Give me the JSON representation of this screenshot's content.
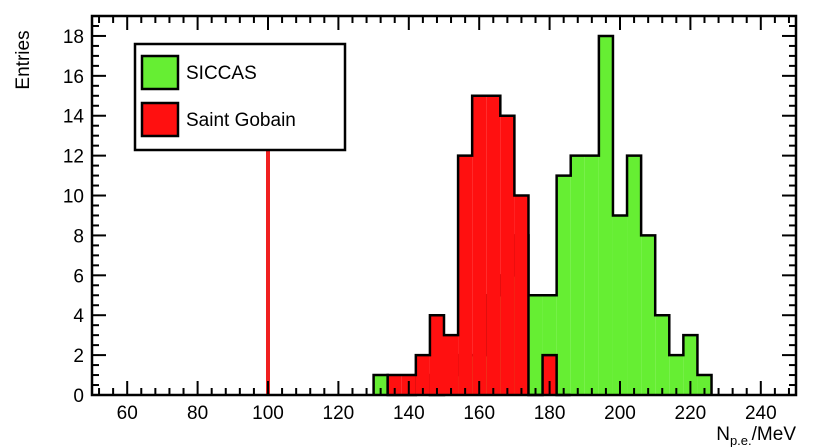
{
  "chart_data": {
    "type": "histogram",
    "title": "",
    "xlabel_main": "N",
    "xlabel_sub": "p.e.",
    "xlabel_tail": "/MeV",
    "ylabel": "Entries",
    "xlim": [
      50,
      250
    ],
    "ylim": [
      0,
      19
    ],
    "bin_width": 4,
    "x_ticks": [
      60,
      80,
      100,
      120,
      140,
      160,
      180,
      200,
      220,
      240
    ],
    "y_ticks": [
      0,
      2,
      4,
      6,
      8,
      10,
      12,
      14,
      16,
      18
    ],
    "legend_position": "top-left",
    "marker_line": {
      "x": 100,
      "color": "#f02020"
    },
    "series": [
      {
        "name": "SICCAS",
        "color": "#66ee33",
        "bins": [
          [
            130,
            134,
            1
          ],
          [
            134,
            138,
            0
          ],
          [
            138,
            142,
            0
          ],
          [
            142,
            146,
            1
          ],
          [
            146,
            150,
            0
          ],
          [
            150,
            154,
            1
          ],
          [
            154,
            158,
            2
          ],
          [
            158,
            162,
            2
          ],
          [
            162,
            166,
            5
          ],
          [
            166,
            170,
            6
          ],
          [
            170,
            174,
            8
          ],
          [
            174,
            178,
            5
          ],
          [
            178,
            182,
            5
          ],
          [
            182,
            186,
            11
          ],
          [
            186,
            190,
            12
          ],
          [
            190,
            194,
            12
          ],
          [
            194,
            198,
            18
          ],
          [
            198,
            202,
            9
          ],
          [
            202,
            206,
            12
          ],
          [
            206,
            210,
            8
          ],
          [
            210,
            214,
            4
          ],
          [
            214,
            218,
            2
          ],
          [
            218,
            222,
            3
          ],
          [
            222,
            226,
            1
          ]
        ]
      },
      {
        "name": "Saint Gobain",
        "color": "#ff1010",
        "bins": [
          [
            134,
            138,
            1
          ],
          [
            138,
            142,
            1
          ],
          [
            142,
            146,
            2
          ],
          [
            146,
            150,
            4
          ],
          [
            150,
            154,
            3
          ],
          [
            154,
            158,
            12
          ],
          [
            158,
            162,
            15
          ],
          [
            162,
            166,
            15
          ],
          [
            166,
            170,
            14
          ],
          [
            170,
            174,
            10
          ],
          [
            174,
            178,
            0
          ],
          [
            178,
            182,
            2
          ],
          [
            182,
            186,
            0
          ]
        ]
      }
    ]
  }
}
